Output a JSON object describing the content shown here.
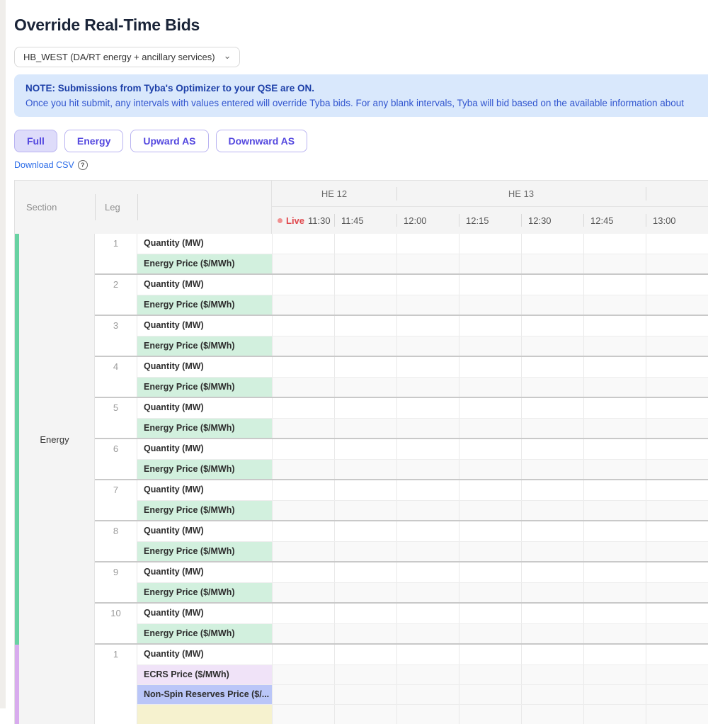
{
  "page": {
    "title": "Override Real-Time Bids"
  },
  "node_select": {
    "value": "HB_WEST (DA/RT energy + ancillary services)"
  },
  "icons": {
    "chevron_down": "⌄",
    "help": "?"
  },
  "note": {
    "line1": "NOTE: Submissions from Tyba's Optimizer to your QSE are ON.",
    "line2": "Once you hit submit, any intervals with values entered will override Tyba bids. For any blank intervals, Tyba will bid based on the available information about"
  },
  "view_tabs": [
    {
      "label": "Full",
      "active": true
    },
    {
      "label": "Energy",
      "active": false
    },
    {
      "label": "Upward AS",
      "active": false
    },
    {
      "label": "Downward AS",
      "active": false
    }
  ],
  "download": {
    "label": "Download CSV"
  },
  "colors": {
    "energy_bar": "#68d2a2",
    "energy_price_cell": "#d2f0de",
    "as_bar": "#d8abee",
    "ecrs_cell": "#f0e3f8",
    "nonspin_cell": "#bac6f8",
    "regup_cell": "#f6f2cf",
    "quantity_cell": "#ffffff",
    "price_row_data_bg": "#f9f9f9",
    "live_red": "#e0484d"
  },
  "table": {
    "section_header": "Section",
    "leg_header": "Leg",
    "live_label": "Live",
    "hour_groups": [
      {
        "label": "HE 12",
        "span": 2
      },
      {
        "label": "HE 13",
        "span": 4
      },
      {
        "label": "",
        "span": 2
      }
    ],
    "time_columns": [
      "11:30",
      "11:45",
      "12:00",
      "12:15",
      "12:30",
      "12:45",
      "13:00",
      ""
    ],
    "cell_values": [],
    "sections": [
      {
        "name": "Energy",
        "bar_color": "#68d2a2",
        "legs": [
          {
            "num": "1",
            "rows": [
              {
                "label": "Quantity (MW)",
                "bg": "#ffffff"
              },
              {
                "label": "Energy Price ($/MWh)",
                "bg": "#d2f0de"
              }
            ]
          },
          {
            "num": "2",
            "rows": [
              {
                "label": "Quantity (MW)",
                "bg": "#ffffff"
              },
              {
                "label": "Energy Price ($/MWh)",
                "bg": "#d2f0de"
              }
            ]
          },
          {
            "num": "3",
            "rows": [
              {
                "label": "Quantity (MW)",
                "bg": "#ffffff"
              },
              {
                "label": "Energy Price ($/MWh)",
                "bg": "#d2f0de"
              }
            ]
          },
          {
            "num": "4",
            "rows": [
              {
                "label": "Quantity (MW)",
                "bg": "#ffffff"
              },
              {
                "label": "Energy Price ($/MWh)",
                "bg": "#d2f0de"
              }
            ]
          },
          {
            "num": "5",
            "rows": [
              {
                "label": "Quantity (MW)",
                "bg": "#ffffff"
              },
              {
                "label": "Energy Price ($/MWh)",
                "bg": "#d2f0de"
              }
            ]
          },
          {
            "num": "6",
            "rows": [
              {
                "label": "Quantity (MW)",
                "bg": "#ffffff"
              },
              {
                "label": "Energy Price ($/MWh)",
                "bg": "#d2f0de"
              }
            ]
          },
          {
            "num": "7",
            "rows": [
              {
                "label": "Quantity (MW)",
                "bg": "#ffffff"
              },
              {
                "label": "Energy Price ($/MWh)",
                "bg": "#d2f0de"
              }
            ]
          },
          {
            "num": "8",
            "rows": [
              {
                "label": "Quantity (MW)",
                "bg": "#ffffff"
              },
              {
                "label": "Energy Price ($/MWh)",
                "bg": "#d2f0de"
              }
            ]
          },
          {
            "num": "9",
            "rows": [
              {
                "label": "Quantity (MW)",
                "bg": "#ffffff"
              },
              {
                "label": "Energy Price ($/MWh)",
                "bg": "#d2f0de"
              }
            ]
          },
          {
            "num": "10",
            "rows": [
              {
                "label": "Quantity (MW)",
                "bg": "#ffffff"
              },
              {
                "label": "Energy Price ($/MWh)",
                "bg": "#d2f0de"
              }
            ]
          }
        ]
      },
      {
        "name": "",
        "bar_color": "#d8abee",
        "legs": [
          {
            "num": "1",
            "rows": [
              {
                "label": "Quantity (MW)",
                "bg": "#ffffff"
              },
              {
                "label": "ECRS Price ($/MWh)",
                "bg": "#f0e3f8"
              },
              {
                "label": "Non-Spin Reserves Price ($/...",
                "bg": "#bac6f8"
              },
              {
                "label": "",
                "bg": "#f6f2cf"
              }
            ]
          }
        ]
      }
    ]
  }
}
